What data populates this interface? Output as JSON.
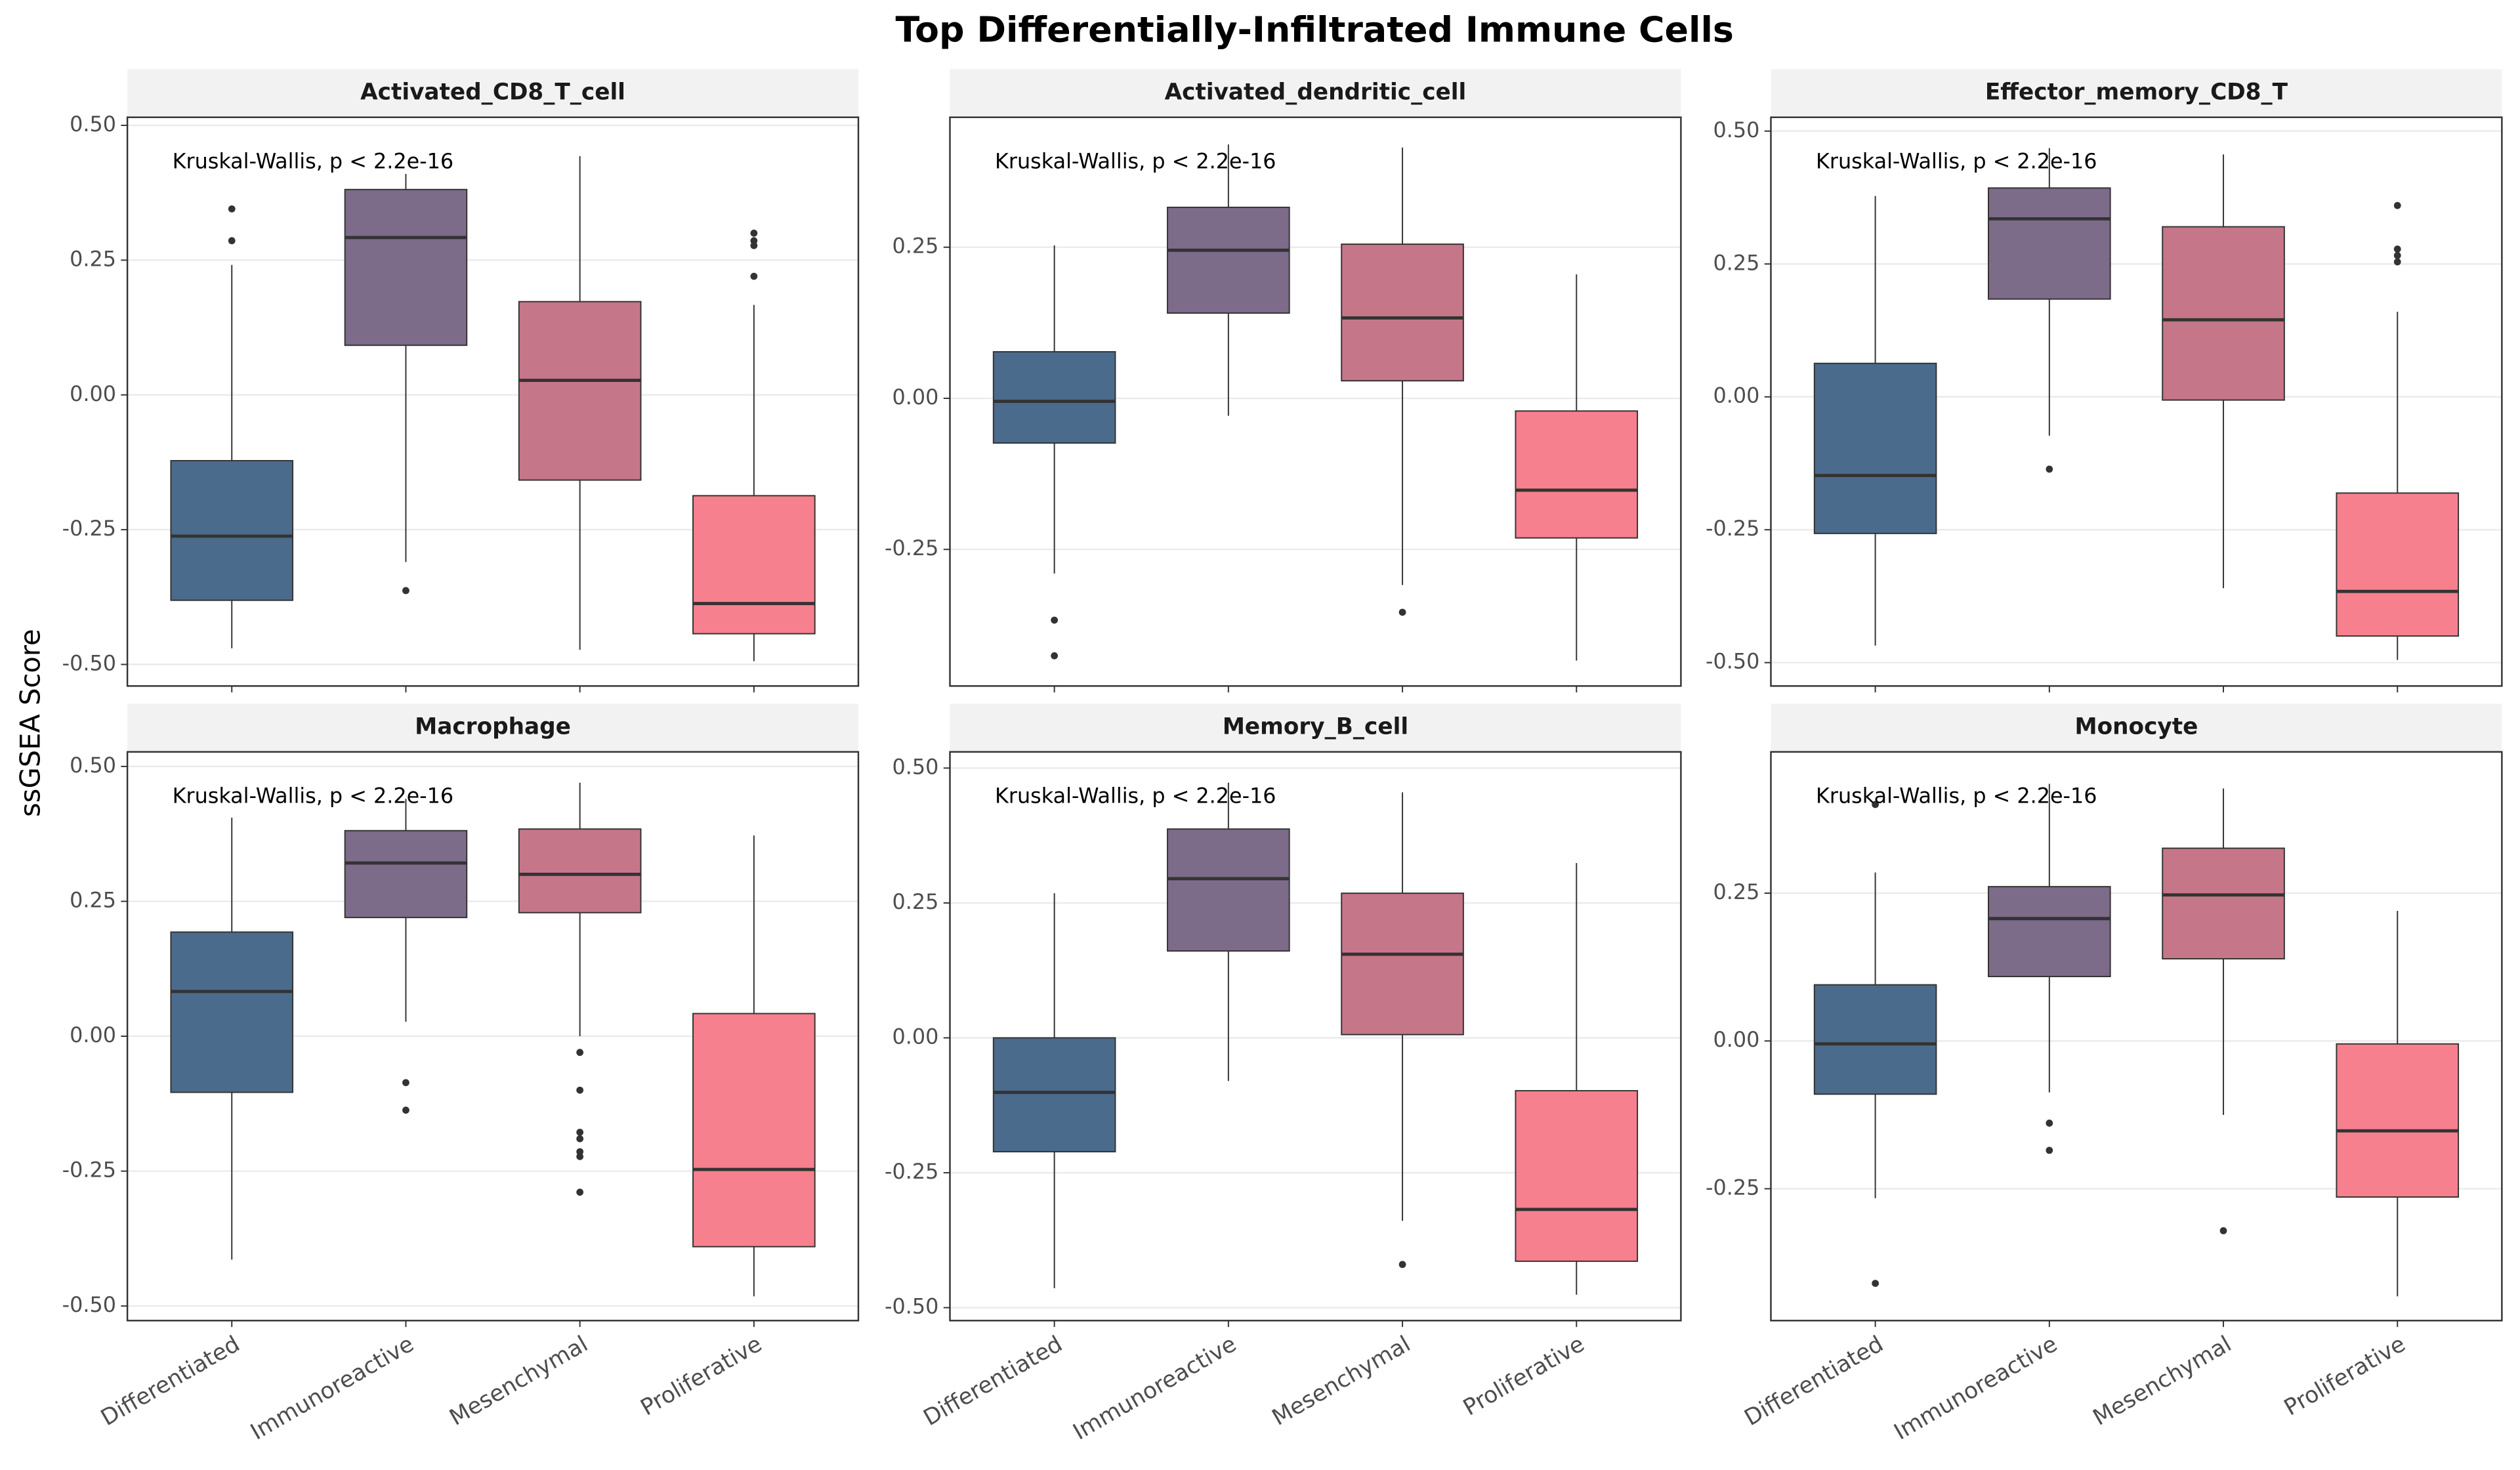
{
  "title": "Top Differentially-Infiltrated Immune Cells",
  "y_label": "ssGSEA Score",
  "chart_data": [
    {
      "type": "box",
      "title": "Activated_CD8_T_cell",
      "annotation": "Kruskal-Wallis, p < 2.2e-16",
      "categories": [
        "Differentiated",
        "Immunoreactive",
        "Mesenchymal",
        "Proliferative"
      ],
      "colors": [
        "#4b6b8c",
        "#7d6b8a",
        "#c67689",
        "#f7808e"
      ],
      "ylim": [
        -0.54,
        0.515
      ],
      "yticks": [
        {
          "value": -0.5,
          "label": "-0.50"
        },
        {
          "value": -0.25,
          "label": "-0.25"
        },
        {
          "value": 0,
          "label": "0.00"
        },
        {
          "value": 0.25,
          "label": "0.25"
        },
        {
          "value": 0.5,
          "label": "0.50"
        }
      ],
      "boxes": [
        {
          "low": -0.47,
          "q1": -0.381,
          "median": -0.262,
          "q3": -0.122,
          "high": 0.241,
          "outliers": [
            0.345,
            0.286
          ]
        },
        {
          "low": -0.31,
          "q1": 0.092,
          "median": 0.292,
          "q3": 0.381,
          "high": 0.41,
          "outliers": [
            -0.363
          ]
        },
        {
          "low": -0.473,
          "q1": -0.158,
          "median": 0.027,
          "q3": 0.173,
          "high": 0.443,
          "outliers": []
        },
        {
          "low": -0.494,
          "q1": -0.443,
          "median": -0.387,
          "q3": -0.187,
          "high": 0.167,
          "outliers": [
            0.3,
            0.286,
            0.277,
            0.22
          ]
        }
      ]
    },
    {
      "type": "box",
      "title": "Activated_dendritic_cell",
      "annotation": "Kruskal-Wallis, p < 2.2e-16",
      "categories": [
        "Differentiated",
        "Immunoreactive",
        "Mesenchymal",
        "Proliferative"
      ],
      "colors": [
        "#4b6b8c",
        "#7d6b8a",
        "#c67689",
        "#f7808e"
      ],
      "ylim": [
        -0.476,
        0.465
      ],
      "yticks": [
        {
          "value": -0.25,
          "label": "-0.25"
        },
        {
          "value": 0,
          "label": "0.00"
        },
        {
          "value": 0.25,
          "label": "0.25"
        }
      ],
      "boxes": [
        {
          "low": -0.29,
          "q1": -0.074,
          "median": -0.005,
          "q3": 0.077,
          "high": 0.253,
          "outliers": [
            -0.367,
            -0.426
          ]
        },
        {
          "low": -0.029,
          "q1": 0.141,
          "median": 0.245,
          "q3": 0.316,
          "high": 0.42,
          "outliers": []
        },
        {
          "low": -0.309,
          "q1": 0.029,
          "median": 0.133,
          "q3": 0.255,
          "high": 0.415,
          "outliers": [
            -0.354
          ]
        },
        {
          "low": -0.434,
          "q1": -0.231,
          "median": -0.152,
          "q3": -0.021,
          "high": 0.205,
          "outliers": []
        }
      ]
    },
    {
      "type": "box",
      "title": "Effector_memory_CD8_T",
      "annotation": "Kruskal-Wallis, p < 2.2e-16",
      "categories": [
        "Differentiated",
        "Immunoreactive",
        "Mesenchymal",
        "Proliferative"
      ],
      "colors": [
        "#4b6b8c",
        "#7d6b8a",
        "#c67689",
        "#f7808e"
      ],
      "ylim": [
        -0.544,
        0.526
      ],
      "yticks": [
        {
          "value": -0.5,
          "label": "-0.50"
        },
        {
          "value": -0.25,
          "label": "-0.25"
        },
        {
          "value": 0,
          "label": "0.00"
        },
        {
          "value": 0.25,
          "label": "0.25"
        },
        {
          "value": 0.5,
          "label": "0.50"
        }
      ],
      "boxes": [
        {
          "low": -0.468,
          "q1": -0.257,
          "median": -0.148,
          "q3": 0.063,
          "high": 0.378,
          "outliers": []
        },
        {
          "low": -0.073,
          "q1": 0.184,
          "median": 0.335,
          "q3": 0.393,
          "high": 0.468,
          "outliers": [
            -0.136
          ]
        },
        {
          "low": -0.36,
          "q1": -0.006,
          "median": 0.145,
          "q3": 0.32,
          "high": 0.456,
          "outliers": []
        },
        {
          "low": -0.495,
          "q1": -0.45,
          "median": -0.366,
          "q3": -0.181,
          "high": 0.16,
          "outliers": [
            0.36,
            0.278,
            0.266,
            0.254
          ]
        }
      ]
    },
    {
      "type": "box",
      "title": "Macrophage",
      "annotation": "Kruskal-Wallis, p < 2.2e-16",
      "categories": [
        "Differentiated",
        "Immunoreactive",
        "Mesenchymal",
        "Proliferative"
      ],
      "colors": [
        "#4b6b8c",
        "#7d6b8a",
        "#c67689",
        "#f7808e"
      ],
      "ylim": [
        -0.527,
        0.527
      ],
      "yticks": [
        {
          "value": -0.5,
          "label": "-0.50"
        },
        {
          "value": -0.25,
          "label": "-0.25"
        },
        {
          "value": 0,
          "label": "0.00"
        },
        {
          "value": 0.25,
          "label": "0.25"
        },
        {
          "value": 0.5,
          "label": "0.50"
        }
      ],
      "boxes": [
        {
          "low": -0.414,
          "q1": -0.104,
          "median": 0.083,
          "q3": 0.193,
          "high": 0.405,
          "outliers": []
        },
        {
          "low": 0.027,
          "q1": 0.22,
          "median": 0.321,
          "q3": 0.381,
          "high": 0.44,
          "outliers": [
            -0.086,
            -0.137
          ]
        },
        {
          "low": 0.0,
          "q1": 0.229,
          "median": 0.3,
          "q3": 0.384,
          "high": 0.47,
          "outliers": [
            -0.03,
            -0.1,
            -0.178,
            -0.19,
            -0.214,
            -0.223,
            -0.289
          ]
        },
        {
          "low": -0.482,
          "q1": -0.39,
          "median": -0.247,
          "q3": 0.042,
          "high": 0.372,
          "outliers": []
        }
      ]
    },
    {
      "type": "box",
      "title": "Memory_B_cell",
      "annotation": "Kruskal-Wallis, p < 2.2e-16",
      "categories": [
        "Differentiated",
        "Immunoreactive",
        "Mesenchymal",
        "Proliferative"
      ],
      "colors": [
        "#4b6b8c",
        "#7d6b8a",
        "#c67689",
        "#f7808e"
      ],
      "ylim": [
        -0.524,
        0.53
      ],
      "yticks": [
        {
          "value": -0.5,
          "label": "-0.50"
        },
        {
          "value": -0.25,
          "label": "-0.25"
        },
        {
          "value": 0,
          "label": "0.00"
        },
        {
          "value": 0.25,
          "label": "0.25"
        },
        {
          "value": 0.5,
          "label": "0.50"
        }
      ],
      "boxes": [
        {
          "low": -0.464,
          "q1": -0.211,
          "median": -0.101,
          "q3": 0.0,
          "high": 0.268,
          "outliers": []
        },
        {
          "low": -0.08,
          "q1": 0.161,
          "median": 0.295,
          "q3": 0.387,
          "high": 0.473,
          "outliers": []
        },
        {
          "low": -0.339,
          "q1": 0.006,
          "median": 0.155,
          "q3": 0.268,
          "high": 0.455,
          "outliers": [
            -0.42
          ]
        },
        {
          "low": -0.476,
          "q1": -0.414,
          "median": -0.318,
          "q3": -0.098,
          "high": 0.324,
          "outliers": []
        }
      ]
    },
    {
      "type": "box",
      "title": "Monocyte",
      "annotation": "Kruskal-Wallis, p < 2.2e-16",
      "categories": [
        "Differentiated",
        "Immunoreactive",
        "Mesenchymal",
        "Proliferative"
      ],
      "colors": [
        "#4b6b8c",
        "#7d6b8a",
        "#c67689",
        "#f7808e"
      ],
      "ylim": [
        -0.473,
        0.489
      ],
      "yticks": [
        {
          "value": -0.25,
          "label": "-0.25"
        },
        {
          "value": 0,
          "label": "0.00"
        },
        {
          "value": 0.25,
          "label": "0.25"
        }
      ],
      "boxes": [
        {
          "low": -0.266,
          "q1": -0.09,
          "median": -0.005,
          "q3": 0.095,
          "high": 0.285,
          "outliers": [
            0.4,
            -0.41
          ]
        },
        {
          "low": -0.087,
          "q1": 0.109,
          "median": 0.207,
          "q3": 0.261,
          "high": 0.435,
          "outliers": [
            -0.139,
            -0.185
          ]
        },
        {
          "low": -0.125,
          "q1": 0.139,
          "median": 0.247,
          "q3": 0.326,
          "high": 0.427,
          "outliers": [
            -0.321
          ]
        },
        {
          "low": -0.432,
          "q1": -0.264,
          "median": -0.152,
          "q3": -0.005,
          "high": 0.22,
          "outliers": []
        }
      ]
    }
  ]
}
